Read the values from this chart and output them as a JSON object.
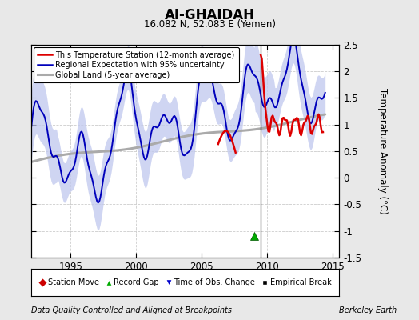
{
  "title": "AI-GHAIDAH",
  "subtitle": "16.082 N, 52.083 E (Yemen)",
  "ylabel": "Temperature Anomaly (°C)",
  "footer_left": "Data Quality Controlled and Aligned at Breakpoints",
  "footer_right": "Berkeley Earth",
  "xlim": [
    1992.0,
    2015.5
  ],
  "ylim": [
    -1.5,
    2.5
  ],
  "yticks": [
    -1.5,
    -1.0,
    -0.5,
    0.0,
    0.5,
    1.0,
    1.5,
    2.0,
    2.5
  ],
  "xticks": [
    1995,
    2000,
    2005,
    2010,
    2015
  ],
  "vertical_line_x": 2009.5,
  "bg_color": "#e8e8e8",
  "plot_bg_color": "#ffffff",
  "blue_line_color": "#0000bb",
  "red_line_color": "#dd0000",
  "gray_line_color": "#aaaaaa",
  "fill_color": "#c0c8ee",
  "grid_color": "#cccccc",
  "record_gap_x": 2009.0,
  "record_gap_y": -1.1
}
